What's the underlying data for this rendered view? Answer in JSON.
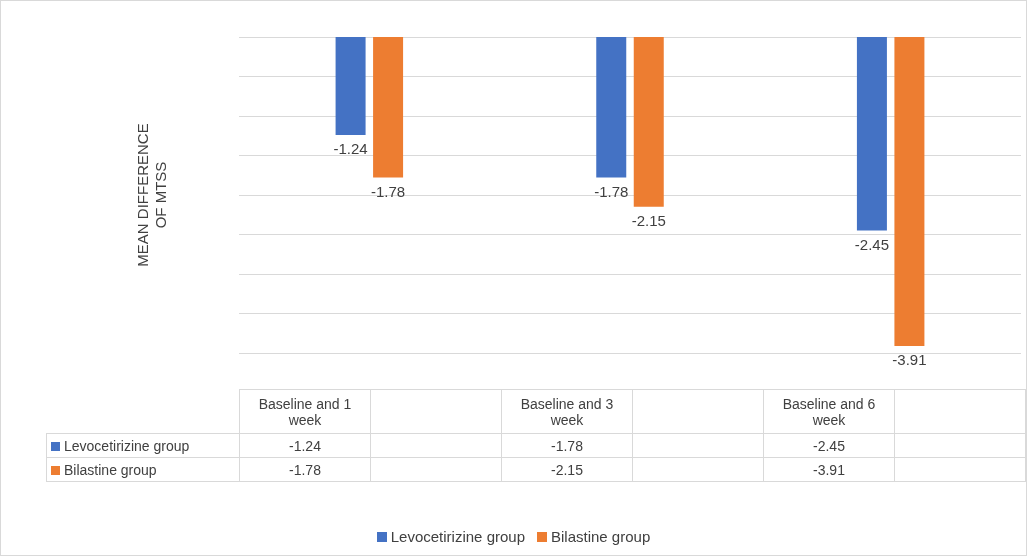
{
  "chart_data": {
    "type": "bar",
    "ylabel": "MEAN DIFFERENCE OF MTSS",
    "categories": [
      "Baseline and 1 week",
      "Baseline and 3 week",
      "Baseline and 6 week"
    ],
    "series": [
      {
        "name": "Levocetirizine group",
        "color": "#4472c4",
        "values": [
          -1.24,
          -1.78,
          -2.45
        ],
        "value_labels": [
          "-1.24",
          "-1.78",
          "-2.45"
        ]
      },
      {
        "name": "Bilastine group",
        "color": "#ed7d31",
        "values": [
          -1.78,
          -2.15,
          -3.91
        ],
        "value_labels": [
          "-1.78",
          "-2.15",
          "-3.91"
        ]
      }
    ],
    "ylim": [
      -4,
      0
    ],
    "yticks": [
      {
        "value": -4,
        "label": null
      },
      {
        "value": -3.5,
        "label": null
      },
      {
        "value": -3,
        "label": null
      },
      {
        "value": -2.5,
        "label": null
      },
      {
        "value": -2,
        "label": null
      },
      {
        "value": -1.5,
        "label": null
      },
      {
        "value": -1,
        "label": null
      },
      {
        "value": -0.5,
        "label": null
      },
      {
        "value": 0,
        "label": null
      }
    ],
    "grid": "y",
    "legend": "bottom",
    "data_labels": true,
    "tick_labels": false
  }
}
